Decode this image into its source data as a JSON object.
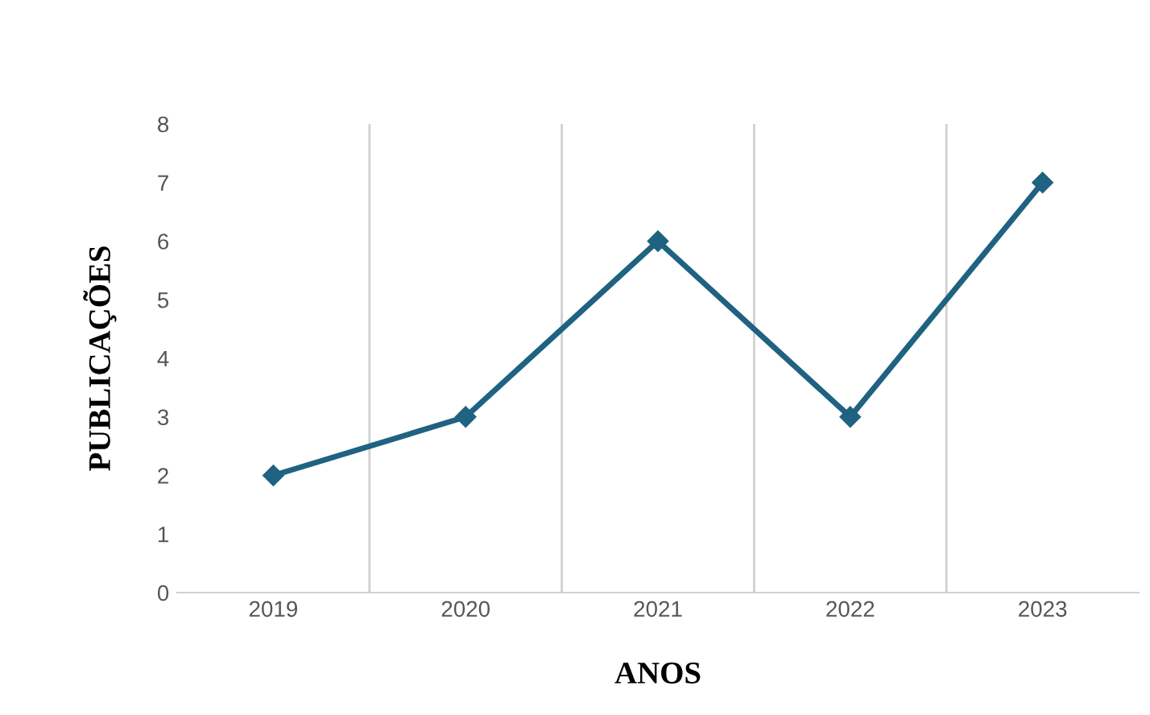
{
  "chart_data": {
    "type": "line",
    "xlabel": "ANOS",
    "ylabel": "PUBLICAÇÕES",
    "categories": [
      "2019",
      "2020",
      "2021",
      "2022",
      "2023"
    ],
    "series": [
      {
        "color": "#1f6282",
        "values": [
          2,
          3,
          6,
          3,
          7
        ]
      }
    ],
    "ylim": [
      0,
      8
    ],
    "yticks": [
      0,
      1,
      2,
      3,
      4,
      5,
      6,
      7,
      8
    ],
    "grid": "x",
    "marker": "diamond",
    "line_style": "solid"
  }
}
